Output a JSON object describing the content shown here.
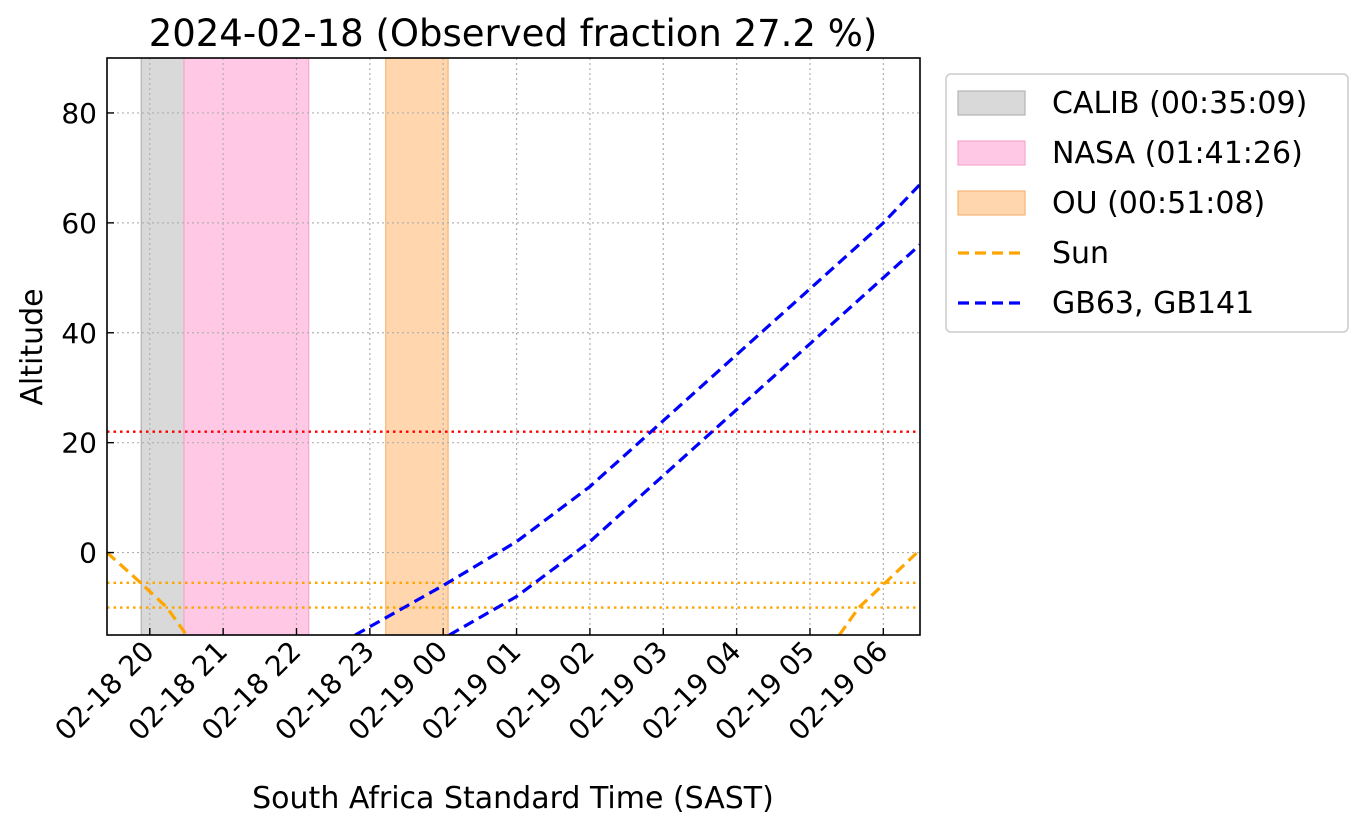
{
  "chart_data": {
    "type": "line",
    "title": "2024-02-18 (Observed fraction 27.2 %)",
    "xlabel": "South Africa Standard Time (SAST)",
    "ylabel": "Altitude",
    "xlim": [
      "2024-02-18T19:25",
      "2024-02-19T06:30"
    ],
    "ylim": [
      -15,
      90
    ],
    "x_ticks": [
      {
        "t": "2024-02-18T20:00",
        "label": "02-18 20"
      },
      {
        "t": "2024-02-18T21:00",
        "label": "02-18 21"
      },
      {
        "t": "2024-02-18T22:00",
        "label": "02-18 22"
      },
      {
        "t": "2024-02-18T23:00",
        "label": "02-18 23"
      },
      {
        "t": "2024-02-19T00:00",
        "label": "02-19 00"
      },
      {
        "t": "2024-02-19T01:00",
        "label": "02-19 01"
      },
      {
        "t": "2024-02-19T02:00",
        "label": "02-19 02"
      },
      {
        "t": "2024-02-19T03:00",
        "label": "02-19 03"
      },
      {
        "t": "2024-02-19T04:00",
        "label": "02-19 04"
      },
      {
        "t": "2024-02-19T05:00",
        "label": "02-19 05"
      },
      {
        "t": "2024-02-19T06:00",
        "label": "02-19 06"
      }
    ],
    "y_ticks": [
      0,
      20,
      40,
      60,
      80
    ],
    "grid": true,
    "legend_position": "outside-right-top",
    "spans": [
      {
        "label": "CALIB (00:35:09)",
        "start": "2024-02-18T19:53",
        "end": "2024-02-18T20:28",
        "color": "#d9d9d9",
        "edge": "#b3b3b3"
      },
      {
        "label": "NASA (01:41:26)",
        "start": "2024-02-18T20:28",
        "end": "2024-02-18T22:10",
        "color": "#ffc9e5",
        "edge": "#f5a8cf"
      },
      {
        "label": "OU (00:51:08)",
        "start": "2024-02-18T23:13",
        "end": "2024-02-19T00:04",
        "color": "#ffd6ad",
        "edge": "#f5b673"
      }
    ],
    "hlines": [
      {
        "y": 22,
        "color": "#ff0000"
      },
      {
        "y": -5.5,
        "color": "#ffa500"
      },
      {
        "y": -10,
        "color": "#ffa500"
      }
    ],
    "series": [
      {
        "name": "Sun",
        "color": "#ffa500",
        "style": "dashed",
        "segments": [
          [
            [
              "2024-02-18T19:25",
              0
            ],
            [
              "2024-02-18T19:50",
              -5
            ],
            [
              "2024-02-18T20:14",
              -10
            ],
            [
              "2024-02-18T20:30",
              -15
            ]
          ],
          [
            [
              "2024-02-19T05:24",
              -15
            ],
            [
              "2024-02-19T05:40",
              -10
            ],
            [
              "2024-02-19T06:04",
              -5
            ],
            [
              "2024-02-19T06:30",
              0.5
            ]
          ]
        ]
      },
      {
        "name": "GB63, GB141",
        "color": "#0000ff",
        "style": "dashed",
        "segments": [
          [
            [
              "2024-02-18T22:48",
              -15
            ],
            [
              "2024-02-19T00:00",
              -6
            ],
            [
              "2024-02-19T01:00",
              2
            ],
            [
              "2024-02-19T02:00",
              12
            ],
            [
              "2024-02-19T03:00",
              24
            ],
            [
              "2024-02-19T04:00",
              36
            ],
            [
              "2024-02-19T05:00",
              48
            ],
            [
              "2024-02-19T06:00",
              60
            ],
            [
              "2024-02-19T06:30",
              67
            ]
          ]
        ]
      },
      {
        "name": "GB63, GB141",
        "color": "#0000ff",
        "style": "dashed",
        "segments": [
          [
            [
              "2024-02-19T00:05",
              -15
            ],
            [
              "2024-02-19T01:00",
              -8
            ],
            [
              "2024-02-19T02:00",
              2
            ],
            [
              "2024-02-19T03:00",
              14
            ],
            [
              "2024-02-19T04:00",
              26
            ],
            [
              "2024-02-19T05:00",
              38
            ],
            [
              "2024-02-19T06:00",
              50
            ],
            [
              "2024-02-19T06:30",
              56
            ]
          ]
        ]
      }
    ],
    "legend": [
      {
        "kind": "patch",
        "label": "CALIB (00:35:09)",
        "color": "#d9d9d9",
        "edge": "#b3b3b3"
      },
      {
        "kind": "patch",
        "label": "NASA (01:41:26)",
        "color": "#ffc9e5",
        "edge": "#f5a8cf"
      },
      {
        "kind": "patch",
        "label": "OU (00:51:08)",
        "color": "#ffd6ad",
        "edge": "#f5b673"
      },
      {
        "kind": "line",
        "label": "Sun",
        "color": "#ffa500"
      },
      {
        "kind": "line",
        "label": "GB63, GB141",
        "color": "#0000ff"
      }
    ]
  }
}
